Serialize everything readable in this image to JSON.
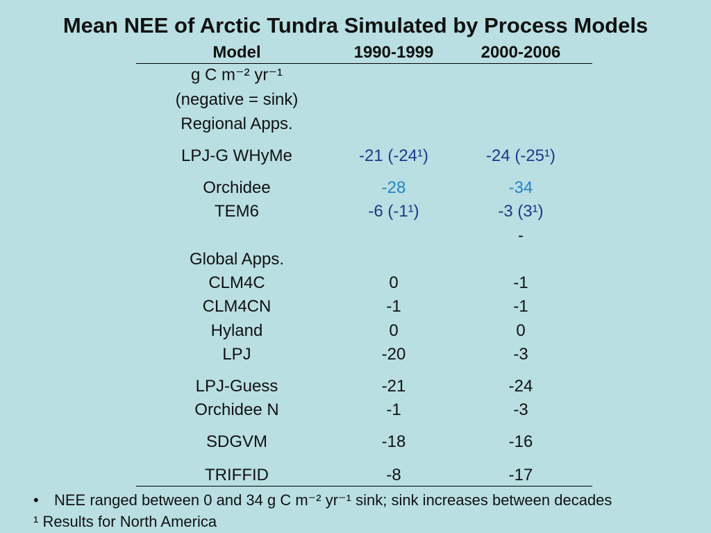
{
  "header": {
    "title": "Mean NEE of Arctic Tundra Simulated by Process Models"
  },
  "table": {
    "columns": [
      "Model",
      "1990-1999",
      "2000-2006"
    ],
    "rows": [
      [
        "g C m⁻² yr⁻¹",
        null,
        null
      ],
      [
        "(negative = sink)",
        null,
        null
      ],
      [
        "Regional Apps.",
        null,
        null
      ],
      [
        "LPJ-G WHyMe",
        "-21 (-24¹)",
        "-24 (-25¹)"
      ],
      [
        "Orchidee",
        "-28",
        "-34"
      ],
      [
        "TEM6",
        "-6 (-1¹)",
        "-3 (3¹)"
      ],
      [
        null,
        null,
        "-"
      ],
      [
        "Global Apps.",
        null,
        null
      ],
      [
        "CLM4C",
        "0",
        "-1"
      ],
      [
        "CLM4CN",
        "-1",
        "-1"
      ],
      [
        "Hyland",
        "0",
        "0"
      ],
      [
        "LPJ",
        "-20",
        "-3"
      ],
      [
        "LPJ-Guess",
        "-21",
        "-24"
      ],
      [
        "Orchidee N",
        "-1",
        "-3"
      ],
      [
        "SDGVM",
        "-18",
        "-16"
      ],
      [
        "TRIFFID",
        "-8",
        "-17"
      ]
    ]
  },
  "notes": {
    "bullet": "NEE ranged between 0 and 34 g C m⁻² yr⁻¹ sink; sink increases between decades",
    "footnote": "¹ Results for North America"
  }
}
